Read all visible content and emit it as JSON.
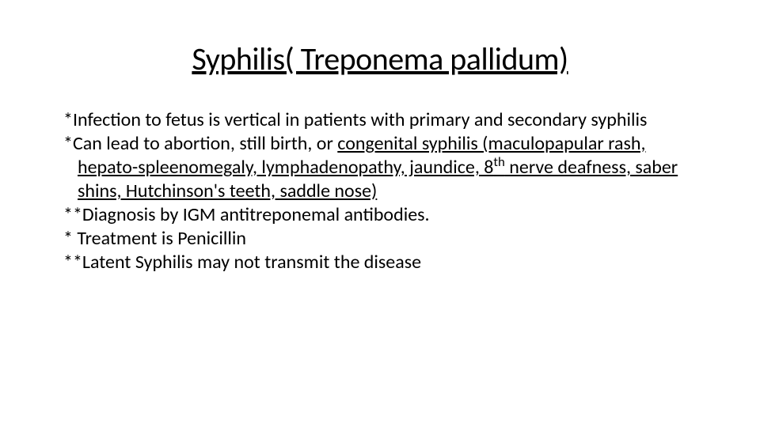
{
  "slide": {
    "title": "Syphilis( Treponema pallidum)",
    "title_fontsize": 40,
    "title_underline": true,
    "title_align": "center",
    "background_color": "#ffffff",
    "text_color": "#000000",
    "font_family": "Calibri",
    "body_fontsize": 24,
    "bullets": [
      {
        "prefix": "*",
        "text_plain": "Infection to fetus is vertical in patients with primary and secondary syphilis",
        "underline_span": null
      },
      {
        "prefix": "*",
        "text_plain": "Can lead to abortion, still birth, or ",
        "underline_span": "congenital syphilis (maculopapular rash,  hepato-spleenomegaly, lymphadenopathy, jaundice, 8th nerve deafness, saber shins, Hutchinson's teeth, saddle nose)",
        "superscript_in_underline": "th",
        "superscript_anchor": "8"
      },
      {
        "prefix": "**",
        "text_plain": "Diagnosis by IGM antitreponemal antibodies.",
        "underline_span": null
      },
      {
        "prefix": "* ",
        "text_plain": "Treatment is Penicillin",
        "underline_span": null
      },
      {
        "prefix": "**",
        "text_plain": "Latent Syphilis may not transmit the disease",
        "underline_span": null
      }
    ]
  }
}
